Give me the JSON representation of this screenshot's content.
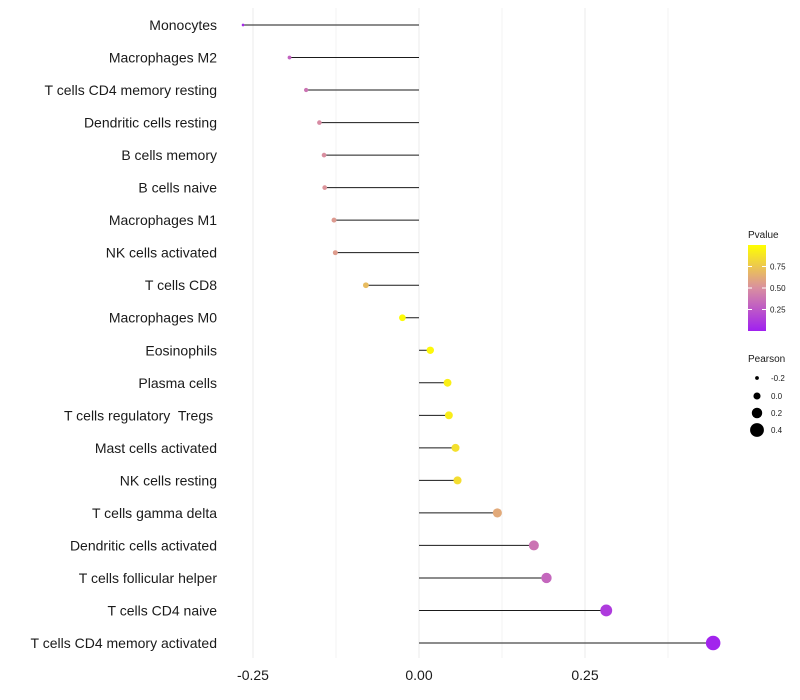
{
  "chart_data": {
    "type": "lollipop",
    "title": "",
    "xlabel": "",
    "ylabel": "",
    "xlim": [
      -0.3,
      0.46
    ],
    "x_ticks": [
      {
        "value": -0.25,
        "label": "-0.25"
      },
      {
        "value": 0.0,
        "label": "0.00"
      },
      {
        "value": 0.25,
        "label": "0.25"
      }
    ],
    "grid_minor": [
      -0.125,
      0.125,
      0.375
    ],
    "categories": [
      "Monocytes",
      "Macrophages M2",
      "T cells CD4 memory resting",
      "Dendritic cells resting",
      "B cells memory",
      "B cells naive",
      "Macrophages M1",
      "NK cells activated",
      "T cells CD8",
      "Macrophages M0",
      "Eosinophils",
      "Plasma cells",
      "T cells regulatory  Tregs ",
      "Mast cells activated",
      "NK cells resting",
      "T cells gamma delta",
      "Dendritic cells activated",
      "T cells follicular helper",
      "T cells CD4 naive",
      "T cells CD4 memory activated"
    ],
    "pearson": [
      -0.265,
      -0.195,
      -0.17,
      -0.15,
      -0.143,
      -0.142,
      -0.128,
      -0.126,
      -0.08,
      -0.025,
      0.017,
      0.043,
      0.045,
      0.055,
      0.058,
      0.118,
      0.173,
      0.192,
      0.282,
      0.443
    ],
    "pvalue": [
      0.05,
      0.3,
      0.38,
      0.48,
      0.5,
      0.52,
      0.55,
      0.56,
      0.7,
      0.98,
      0.97,
      0.93,
      0.92,
      0.86,
      0.85,
      0.62,
      0.38,
      0.32,
      0.12,
      0.02
    ],
    "legend_color": {
      "title": "Pvalue",
      "range": [
        0.0,
        1.0
      ],
      "ticks": [
        {
          "value": 0.75,
          "label": "0.75"
        },
        {
          "value": 0.5,
          "label": "0.50"
        },
        {
          "value": 0.25,
          "label": "0.25"
        }
      ],
      "colors": {
        "low": "#a020f0",
        "mid": "#d98fa0",
        "high": "#ffff00"
      }
    },
    "legend_size": {
      "title": "Pearson",
      "entries": [
        {
          "value": -0.2,
          "label": "-0.2"
        },
        {
          "value": 0.0,
          "label": "0.0"
        },
        {
          "value": 0.2,
          "label": "0.2"
        },
        {
          "value": 0.4,
          "label": "0.4"
        }
      ]
    },
    "colors": {
      "stem": "#1a1a1a",
      "grid": "#ebebeb",
      "legend_dot": "#000000"
    }
  }
}
